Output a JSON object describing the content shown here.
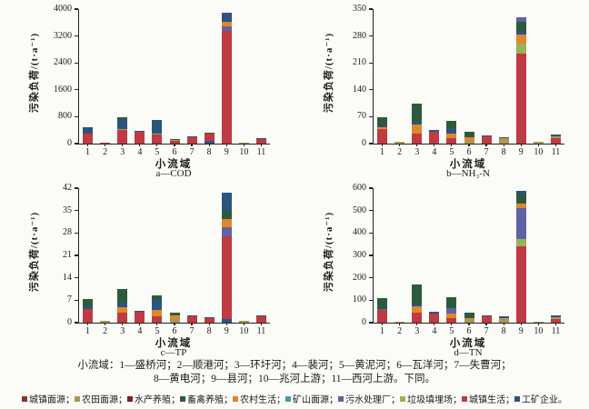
{
  "chart_data": {
    "type": "bar",
    "stacked": true,
    "grid": false,
    "legend_position": "bottom",
    "xlabel": "小流域",
    "ylabel": "污染负荷/(t·a⁻¹)",
    "categories": [
      "1",
      "2",
      "3",
      "4",
      "5",
      "6",
      "7",
      "8",
      "9",
      "10",
      "11"
    ],
    "palette": {
      "u": "#8e2f2e",
      "f": "#a89858",
      "aq": "#7e2024",
      "lv": "#2e5a3c",
      "rl": "#e0862c",
      "mn": "#3f9ea6",
      "wp": "#5f63a5",
      "lf": "#97b357",
      "ul": "#bf3a41",
      "ie": "#2c5480"
    },
    "legend": [
      {
        "key": "u",
        "label": "城镇面源",
        "sep": "；"
      },
      {
        "key": "f",
        "label": "农田面源",
        "sep": "；"
      },
      {
        "key": "aq",
        "label": "水产养殖",
        "sep": "；"
      },
      {
        "key": "lv",
        "label": "畜禽养殖",
        "sep": "；"
      },
      {
        "key": "rl",
        "label": "农村生活",
        "sep": "；"
      },
      {
        "key": "mn",
        "label": "矿山面源",
        "sep": "；"
      },
      {
        "key": "wp",
        "label": "污水处理厂",
        "sep": "；"
      },
      {
        "key": "lf",
        "label": "垃圾填埋场",
        "sep": "；"
      },
      {
        "key": "ul",
        "label": "城镇生活",
        "sep": "；"
      },
      {
        "key": "ie",
        "label": "工矿企业",
        "sep": "。"
      }
    ],
    "charts": [
      {
        "id": "a",
        "subtitle": "a—COD",
        "ymax": 4000,
        "yticks": [
          0,
          800,
          1600,
          2400,
          3200,
          4000
        ],
        "bars": [
          [
            [
              "ul",
              290
            ],
            [
              "ie",
              170
            ],
            [
              "lv",
              30
            ]
          ],
          [
            [
              "ul",
              40
            ]
          ],
          [
            [
              "ul",
              400
            ],
            [
              "f",
              25
            ],
            [
              "ie",
              270
            ],
            [
              "lv",
              85
            ]
          ],
          [
            [
              "ul",
              340
            ],
            [
              "ie",
              10
            ]
          ],
          [
            [
              "ul",
              270
            ],
            [
              "f",
              20
            ],
            [
              "ie",
              380
            ],
            [
              "lv",
              30
            ]
          ],
          [
            [
              "ul",
              70
            ],
            [
              "f",
              20
            ],
            [
              "lv",
              25
            ]
          ],
          [
            [
              "ul",
              190
            ],
            [
              "ie",
              10
            ]
          ],
          [
            [
              "ie",
              90
            ],
            [
              "ul",
              200
            ],
            [
              "lv",
              15
            ]
          ],
          [
            [
              "ul",
              3350
            ],
            [
              "wp",
              130
            ],
            [
              "rl",
              140
            ],
            [
              "ie",
              280
            ]
          ],
          [
            [
              "f",
              20
            ]
          ],
          [
            [
              "ul",
              140
            ],
            [
              "ie",
              10
            ]
          ]
        ]
      },
      {
        "id": "b",
        "subtitle": "b—NH₃-N",
        "ymax": 350,
        "yticks": [
          0,
          70,
          140,
          210,
          280,
          350
        ],
        "bars": [
          [
            [
              "ul",
              38
            ],
            [
              "rl",
              5
            ],
            [
              "ie",
              5
            ],
            [
              "lv",
              20
            ]
          ],
          [
            [
              "f",
              5
            ]
          ],
          [
            [
              "ul",
              26
            ],
            [
              "rl",
              24
            ],
            [
              "ie",
              8
            ],
            [
              "lv",
              45
            ]
          ],
          [
            [
              "ul",
              30
            ],
            [
              "ie",
              5
            ]
          ],
          [
            [
              "ul",
              15
            ],
            [
              "rl",
              10
            ],
            [
              "ie",
              15
            ],
            [
              "lv",
              20
            ]
          ],
          [
            [
              "f",
              8
            ],
            [
              "rl",
              8
            ],
            [
              "lv",
              14
            ]
          ],
          [
            [
              "ul",
              20
            ],
            [
              "ie",
              2
            ]
          ],
          [
            [
              "f",
              12
            ],
            [
              "rl",
              3
            ],
            [
              "ie",
              2
            ]
          ],
          [
            [
              "ul",
              235
            ],
            [
              "lf",
              25
            ],
            [
              "rl",
              25
            ],
            [
              "ie",
              8
            ],
            [
              "lv",
              25
            ],
            [
              "wp",
              10
            ]
          ],
          [
            [
              "f",
              5
            ]
          ],
          [
            [
              "ul",
              14
            ],
            [
              "f",
              5
            ],
            [
              "ie",
              4
            ]
          ]
        ]
      },
      {
        "id": "c",
        "subtitle": "c—TP",
        "ymax": 42,
        "yticks": [
          0,
          7,
          14,
          21,
          28,
          35,
          42
        ],
        "bars": [
          [
            [
              "ul",
              4.2
            ],
            [
              "ie",
              0.8
            ],
            [
              "lv",
              2.5
            ]
          ],
          [
            [
              "f",
              0.5
            ]
          ],
          [
            [
              "ul",
              3.2
            ],
            [
              "rl",
              1.6
            ],
            [
              "ie",
              1.4
            ],
            [
              "lv",
              4.3
            ]
          ],
          [
            [
              "ul",
              3.3
            ],
            [
              "ie",
              0.2
            ]
          ],
          [
            [
              "ul",
              2.0
            ],
            [
              "rl",
              2.0
            ],
            [
              "ie",
              3.2
            ],
            [
              "lv",
              1.3
            ]
          ],
          [
            [
              "f",
              1.2
            ],
            [
              "rl",
              1.0
            ],
            [
              "lv",
              1.0
            ]
          ],
          [
            [
              "ul",
              2.0
            ],
            [
              "ie",
              0.2
            ]
          ],
          [
            [
              "ul",
              1.5
            ],
            [
              "ie",
              0.2
            ]
          ],
          [
            [
              "ie",
              1.0
            ],
            [
              "ul",
              26.0
            ],
            [
              "wp",
              2.8
            ],
            [
              "rl",
              2.6
            ],
            [
              "lv",
              2.4
            ],
            [
              "ie",
              5.9
            ]
          ],
          [
            [
              "f",
              0.5
            ]
          ],
          [
            [
              "ul",
              2.0
            ],
            [
              "ie",
              0.3
            ]
          ]
        ]
      },
      {
        "id": "d",
        "subtitle": "d—TN",
        "ymax": 600,
        "yticks": [
          0,
          100,
          200,
          300,
          400,
          500,
          600
        ],
        "bars": [
          [
            [
              "ul",
              55
            ],
            [
              "wp",
              6
            ],
            [
              "lv",
              48
            ]
          ],
          [
            [
              "f",
              5
            ]
          ],
          [
            [
              "ul",
              45
            ],
            [
              "rl",
              28
            ],
            [
              "ie",
              13
            ],
            [
              "lv",
              84
            ]
          ],
          [
            [
              "ul",
              42
            ],
            [
              "ie",
              5
            ]
          ],
          [
            [
              "ul",
              22
            ],
            [
              "rl",
              20
            ],
            [
              "wp",
              24
            ],
            [
              "lv",
              46
            ]
          ],
          [
            [
              "f",
              16
            ],
            [
              "rl",
              6
            ],
            [
              "lv",
              22
            ]
          ],
          [
            [
              "ul",
              30
            ],
            [
              "ie",
              3
            ]
          ],
          [
            [
              "f",
              22
            ],
            [
              "ie",
              5
            ]
          ],
          [
            [
              "ul",
              340
            ],
            [
              "lf",
              35
            ],
            [
              "wp",
              135
            ],
            [
              "rl",
              20
            ],
            [
              "lv",
              45
            ],
            [
              "ie",
              15
            ]
          ],
          [
            [
              "f",
              6
            ]
          ],
          [
            [
              "ul",
              17
            ],
            [
              "f",
              9
            ],
            [
              "ie",
              6
            ]
          ]
        ]
      }
    ]
  },
  "caption": {
    "line1": "小流域：1—盛桥河；2—顺港河；3—环圩河；4—裴河；5—黄泥河；6—瓦洋河；7—失曹河；",
    "line2": "8—黄电河；9—县河；10—兆河上游；11—西河上游。下同。"
  }
}
